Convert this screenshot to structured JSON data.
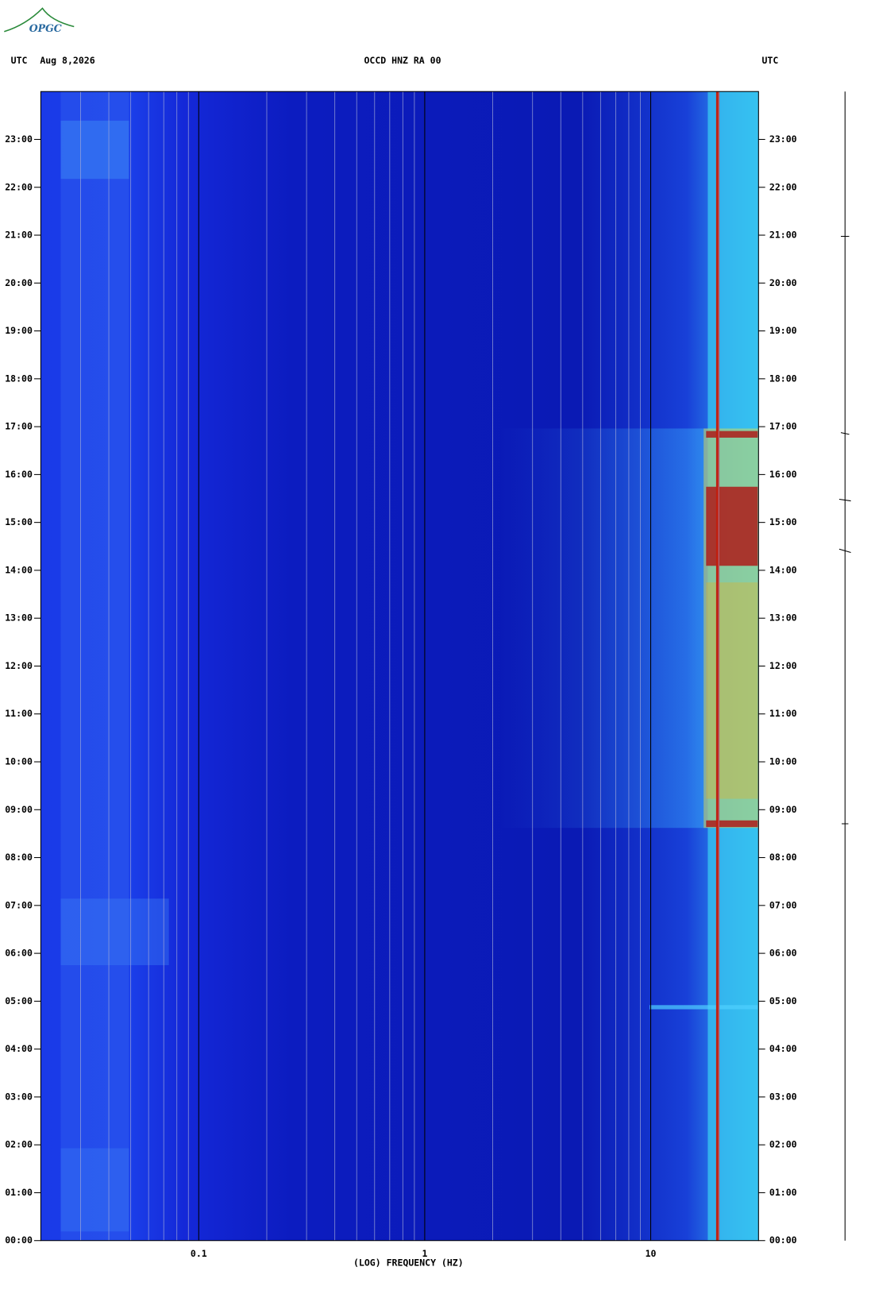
{
  "logo": "OPGC",
  "chart_data": {
    "type": "spectrogram",
    "timezone_left": "UTC",
    "date": "Aug 8,2026",
    "title": "OCCD HNZ RA 00",
    "timezone_right": "UTC",
    "x_label": "(LOG) FREQUENCY (HZ)",
    "xscale": "log",
    "xlim": [
      0.02,
      30
    ],
    "xticks": [
      0.1,
      1,
      10
    ],
    "xminorticks": [
      0.03,
      0.04,
      0.05,
      0.06,
      0.07,
      0.08,
      0.09,
      0.2,
      0.3,
      0.4,
      0.5,
      0.6,
      0.7,
      0.8,
      0.9,
      2,
      3,
      4,
      5,
      6,
      7,
      8,
      9,
      20,
      30
    ],
    "ylim": [
      0,
      24
    ],
    "yticks": [
      {
        "value": 0,
        "label": "00:00"
      },
      {
        "value": 1,
        "label": "01:00"
      },
      {
        "value": 2,
        "label": "02:00"
      },
      {
        "value": 3,
        "label": "03:00"
      },
      {
        "value": 4,
        "label": "04:00"
      },
      {
        "value": 5,
        "label": "05:00"
      },
      {
        "value": 6,
        "label": "06:00"
      },
      {
        "value": 7,
        "label": "07:00"
      },
      {
        "value": 8,
        "label": "08:00"
      },
      {
        "value": 9,
        "label": "09:00"
      },
      {
        "value": 10,
        "label": "10:00"
      },
      {
        "value": 11,
        "label": "11:00"
      },
      {
        "value": 12,
        "label": "12:00"
      },
      {
        "value": 13,
        "label": "13:00"
      },
      {
        "value": 14,
        "label": "14:00"
      },
      {
        "value": 15,
        "label": "15:00"
      },
      {
        "value": 16,
        "label": "16:00"
      },
      {
        "value": 17,
        "label": "17:00"
      },
      {
        "value": 18,
        "label": "18:00"
      },
      {
        "value": 19,
        "label": "19:00"
      },
      {
        "value": 20,
        "label": "20:00"
      },
      {
        "value": 21,
        "label": "21:00"
      },
      {
        "value": 22,
        "label": "22:00"
      },
      {
        "value": 23,
        "label": "23:00"
      }
    ]
  }
}
